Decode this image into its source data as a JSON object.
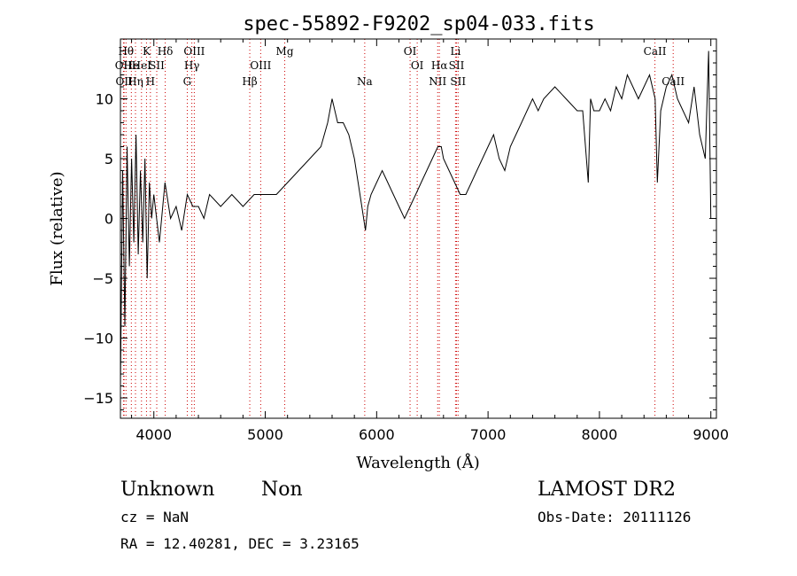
{
  "chart_data": {
    "type": "line",
    "title": "spec-55892-F9202_sp04-033.fits",
    "xlabel": "Wavelength (Å)",
    "ylabel": "Flux (relative)",
    "xlim": [
      3700,
      9050
    ],
    "ylim": [
      -16.7,
      15
    ],
    "x_ticks": [
      4000,
      5000,
      6000,
      7000,
      8000,
      9000
    ],
    "y_ticks": [
      -15,
      -10,
      -5,
      0,
      5,
      10
    ],
    "grid": false,
    "line_color": "#000000",
    "marker_color": "#cc0000",
    "series": [
      {
        "x": [
          3700,
          3720,
          3740,
          3760,
          3780,
          3800,
          3820,
          3840,
          3860,
          3880,
          3900,
          3920,
          3940,
          3960,
          3980,
          4000,
          4050,
          4100,
          4150,
          4200,
          4250,
          4300,
          4350,
          4400,
          4450,
          4500,
          4600,
          4700,
          4800,
          4900,
          5000,
          5100,
          5200,
          5300,
          5400,
          5500,
          5560,
          5600,
          5650,
          5700,
          5750,
          5800,
          5850,
          5900,
          5920,
          5950,
          6000,
          6050,
          6100,
          6150,
          6200,
          6250,
          6300,
          6350,
          6400,
          6450,
          6500,
          6550,
          6580,
          6600,
          6650,
          6700,
          6750,
          6800,
          6850,
          6900,
          6950,
          7000,
          7050,
          7100,
          7150,
          7200,
          7250,
          7300,
          7350,
          7400,
          7450,
          7500,
          7600,
          7700,
          7800,
          7850,
          7900,
          7920,
          7950,
          8000,
          8050,
          8100,
          8150,
          8200,
          8250,
          8300,
          8350,
          8400,
          8450,
          8500,
          8520,
          8550,
          8600,
          8650,
          8700,
          8750,
          8800,
          8850,
          8900,
          8950,
          8980,
          9000
        ],
        "y": [
          -14,
          4,
          -9,
          6,
          -4,
          5,
          -2,
          7,
          -3,
          4,
          -2,
          5,
          -5,
          3,
          0,
          2,
          -2,
          3,
          0,
          1,
          -1,
          2,
          1,
          1,
          0,
          2,
          1,
          2,
          1,
          2,
          2,
          2,
          3,
          4,
          5,
          6,
          8,
          10,
          8,
          8,
          7,
          5,
          2,
          -1,
          1,
          2,
          3,
          4,
          3,
          2,
          1,
          0,
          1,
          2,
          3,
          4,
          5,
          6,
          6,
          5,
          4,
          3,
          2,
          2,
          3,
          4,
          5,
          6,
          7,
          5,
          4,
          6,
          7,
          8,
          9,
          10,
          9,
          10,
          11,
          10,
          9,
          9,
          3,
          10,
          9,
          9,
          10,
          9,
          11,
          10,
          12,
          11,
          10,
          11,
          12,
          10,
          3,
          9,
          11,
          12,
          10,
          9,
          8,
          11,
          7,
          5,
          14,
          0
        ]
      }
    ],
    "line_markers": [
      {
        "x": 3727,
        "label": "OII",
        "row": 2
      },
      {
        "x": 3733,
        "label": "OII",
        "row": 3
      },
      {
        "x": 3750,
        "label": "Hθ",
        "row": 1
      },
      {
        "x": 3798,
        "label": "He",
        "row": 2
      },
      {
        "x": 3835,
        "label": "Hη",
        "row": 3
      },
      {
        "x": 3889,
        "label": "HeI",
        "row": 2
      },
      {
        "x": 3934,
        "label": "K",
        "row": 1
      },
      {
        "x": 3969,
        "label": "H",
        "row": 3
      },
      {
        "x": 4026,
        "label": "SII",
        "row": 2
      },
      {
        "x": 4102,
        "label": "Hδ",
        "row": 1
      },
      {
        "x": 4300,
        "label": "G",
        "row": 3
      },
      {
        "x": 4341,
        "label": "Hγ",
        "row": 2
      },
      {
        "x": 4363,
        "label": "OIII",
        "row": 1
      },
      {
        "x": 4861,
        "label": "Hβ",
        "row": 3
      },
      {
        "x": 4959,
        "label": "OIII",
        "row": 2
      },
      {
        "x": 5175,
        "label": "Mg",
        "row": 1
      },
      {
        "x": 5893,
        "label": "Na",
        "row": 3
      },
      {
        "x": 6300,
        "label": "OI",
        "row": 1
      },
      {
        "x": 6364,
        "label": "OI",
        "row": 2
      },
      {
        "x": 6548,
        "label": "NII",
        "row": 3
      },
      {
        "x": 6563,
        "label": "Hα",
        "row": 2
      },
      {
        "x": 6708,
        "label": "Li",
        "row": 1
      },
      {
        "x": 6717,
        "label": "SII",
        "row": 2
      },
      {
        "x": 6731,
        "label": "SII",
        "row": 3
      },
      {
        "x": 8498,
        "label": "CaII",
        "row": 1
      },
      {
        "x": 8662,
        "label": "CaII",
        "row": 3
      }
    ]
  },
  "info": {
    "class": "Unknown",
    "subclass": "Non",
    "cz": "cz = NaN",
    "coords": "RA =   12.40281, DEC =    3.23165",
    "survey": "LAMOST DR2",
    "obs_date": "Obs-Date: 20111126"
  }
}
